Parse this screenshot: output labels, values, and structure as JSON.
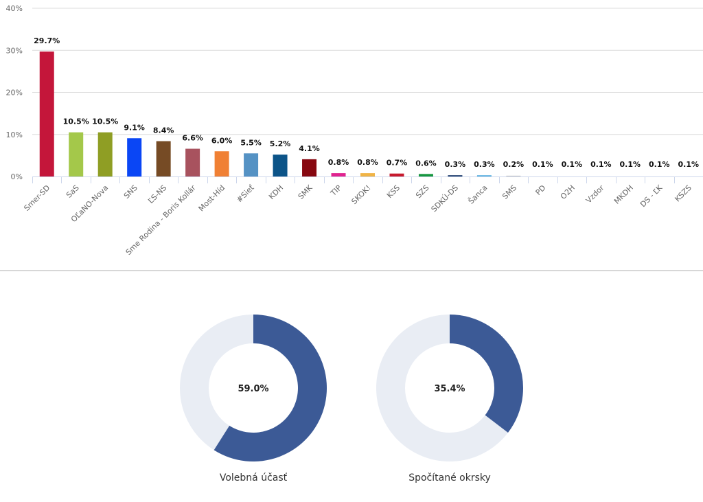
{
  "chart_data": [
    {
      "type": "bar",
      "title": "",
      "xlabel": "",
      "ylabel": "",
      "ylim": [
        0,
        40
      ],
      "yticks": [
        0,
        10,
        20,
        30,
        40
      ],
      "ytick_labels": [
        "0%",
        "10%",
        "20%",
        "30%",
        "40%"
      ],
      "grid": true,
      "categories": [
        "Smer-SD",
        "SaS",
        "OĽaNO-Nova",
        "SNS",
        "ĽS-NS",
        "Sme Rodina - Boris Kollár",
        "Most-Híd",
        "#Sieť",
        "KDH",
        "SMK",
        "TIP",
        "SKOK!",
        "KSS",
        "SZS",
        "SDKÚ-DS",
        "Šanca",
        "SMS",
        "PD",
        "O2H",
        "Vzdor",
        "MKDH",
        "DS - ĽK",
        "KSZS"
      ],
      "values": [
        29.7,
        10.5,
        10.5,
        9.1,
        8.4,
        6.6,
        6.0,
        5.5,
        5.2,
        4.1,
        0.8,
        0.8,
        0.7,
        0.6,
        0.3,
        0.3,
        0.2,
        0.1,
        0.1,
        0.1,
        0.1,
        0.1,
        0.1
      ],
      "value_labels": [
        "29.7%",
        "10.5%",
        "10.5%",
        "9.1%",
        "8.4%",
        "6.6%",
        "6.0%",
        "5.5%",
        "5.2%",
        "4.1%",
        "0.8%",
        "0.8%",
        "0.7%",
        "0.6%",
        "0.3%",
        "0.3%",
        "0.2%",
        "0.1%",
        "0.1%",
        "0.1%",
        "0.1%",
        "0.1%",
        "0.1%"
      ],
      "colors": [
        "#c4163a",
        "#a4c84a",
        "#8f9e24",
        "#0a46f5",
        "#764b25",
        "#a8525e",
        "#f08034",
        "#5592c4",
        "#0c5488",
        "#870810",
        "#e0238f",
        "#f0b446",
        "#c71a2d",
        "#17973f",
        "#1b3a6a",
        "#5db2e0",
        "#cccccc",
        "#cccccc",
        "#cccccc",
        "#cccccc",
        "#cccccc",
        "#cccccc",
        "#cccccc"
      ]
    },
    {
      "type": "pie",
      "variant": "donut",
      "label": "Volebná účasť",
      "value": 59.0,
      "center_text": "59.0%",
      "fill_color": "#3c5a96",
      "track_color": "#e9edf4"
    },
    {
      "type": "pie",
      "variant": "donut",
      "label": "Spočítané okrsky",
      "value": 35.4,
      "center_text": "35.4%",
      "fill_color": "#3c5a96",
      "track_color": "#e9edf4"
    }
  ]
}
